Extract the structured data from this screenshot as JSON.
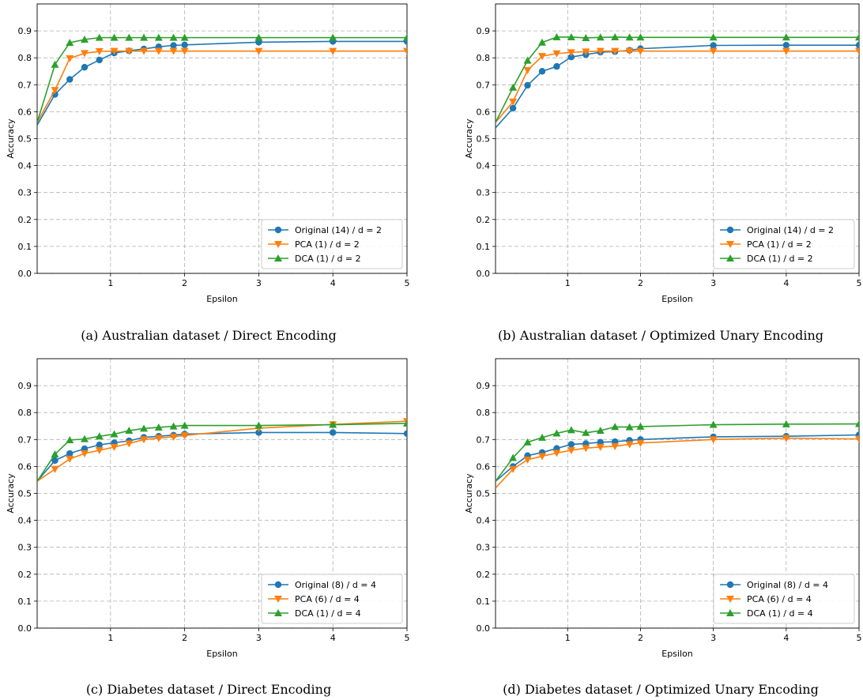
{
  "colors": {
    "original": "#1f77b4",
    "pca": "#ff7f0e",
    "dca": "#2ca02c"
  },
  "chart_data": [
    {
      "type": "line",
      "caption": "(a) Australian dataset / Direct Encoding",
      "xlabel": "Epsilon",
      "ylabel": "Accuracy",
      "xlim": [
        0.01,
        5
      ],
      "ylim": [
        0,
        1
      ],
      "xticks": [
        "1",
        "2",
        "3",
        "4",
        "5"
      ],
      "yticks": [
        "0.0",
        "0.1",
        "0.2",
        "0.3",
        "0.4",
        "0.5",
        "0.6",
        "0.7",
        "0.8",
        "0.9"
      ],
      "grid": true,
      "legend_position": "lower-right",
      "series": [
        {
          "name": "Original (14) / d = 2",
          "marker": "circle",
          "x": [
            0.01,
            0.25,
            0.45,
            0.65,
            0.85,
            1.05,
            1.25,
            1.45,
            1.65,
            1.85,
            2,
            3,
            4,
            5
          ],
          "y": [
            0.55,
            0.664,
            0.72,
            0.765,
            0.792,
            0.818,
            0.826,
            0.833,
            0.841,
            0.846,
            0.848,
            0.858,
            0.861,
            0.861
          ]
        },
        {
          "name": "PCA (1) / d = 2",
          "marker": "triangle-down",
          "x": [
            0.01,
            0.25,
            0.45,
            0.65,
            0.85,
            1.05,
            1.25,
            1.45,
            1.65,
            1.85,
            2,
            3,
            4,
            5
          ],
          "y": [
            0.56,
            0.68,
            0.798,
            0.817,
            0.824,
            0.825,
            0.825,
            0.825,
            0.825,
            0.825,
            0.825,
            0.825,
            0.825,
            0.825
          ]
        },
        {
          "name": "DCA (1) / d = 2",
          "marker": "triangle-up",
          "x": [
            0.01,
            0.25,
            0.45,
            0.65,
            0.85,
            1.05,
            1.25,
            1.45,
            1.65,
            1.85,
            2,
            3,
            4,
            5
          ],
          "y": [
            0.56,
            0.775,
            0.856,
            0.868,
            0.875,
            0.875,
            0.875,
            0.875,
            0.875,
            0.875,
            0.875,
            0.875,
            0.875,
            0.875
          ]
        }
      ]
    },
    {
      "type": "line",
      "caption": "(b) Australian dataset / Optimized Unary Encoding",
      "xlabel": "Epsilon",
      "ylabel": "Accuracy",
      "xlim": [
        0.01,
        5
      ],
      "ylim": [
        0,
        1
      ],
      "xticks": [
        "1",
        "2",
        "3",
        "4",
        "5"
      ],
      "yticks": [
        "0.0",
        "0.1",
        "0.2",
        "0.3",
        "0.4",
        "0.5",
        "0.6",
        "0.7",
        "0.8",
        "0.9"
      ],
      "grid": true,
      "legend_position": "lower-right",
      "series": [
        {
          "name": "Original (14) / d = 2",
          "marker": "circle",
          "x": [
            0.01,
            0.25,
            0.45,
            0.65,
            0.85,
            1.05,
            1.25,
            1.45,
            1.65,
            1.85,
            2,
            3,
            4,
            5
          ],
          "y": [
            0.54,
            0.613,
            0.698,
            0.75,
            0.768,
            0.803,
            0.812,
            0.821,
            0.823,
            0.828,
            0.834,
            0.846,
            0.847,
            0.847
          ]
        },
        {
          "name": "PCA (1) / d = 2",
          "marker": "triangle-down",
          "x": [
            0.01,
            0.25,
            0.45,
            0.65,
            0.85,
            1.05,
            1.25,
            1.45,
            1.65,
            1.85,
            2,
            3,
            4,
            5
          ],
          "y": [
            0.56,
            0.637,
            0.754,
            0.806,
            0.816,
            0.82,
            0.823,
            0.825,
            0.825,
            0.825,
            0.825,
            0.825,
            0.825,
            0.825
          ]
        },
        {
          "name": "DCA (1) / d = 2",
          "marker": "triangle-up",
          "x": [
            0.01,
            0.25,
            0.45,
            0.65,
            0.85,
            1.05,
            1.25,
            1.45,
            1.65,
            1.85,
            2,
            3,
            4,
            5
          ],
          "y": [
            0.56,
            0.69,
            0.79,
            0.857,
            0.877,
            0.877,
            0.874,
            0.876,
            0.877,
            0.876,
            0.876,
            0.876,
            0.876,
            0.876
          ]
        }
      ]
    },
    {
      "type": "line",
      "caption": "(c) Diabetes dataset / Direct Encoding",
      "xlabel": "Epsilon",
      "ylabel": "Accuracy",
      "xlim": [
        0.01,
        5
      ],
      "ylim": [
        0,
        1
      ],
      "xticks": [
        "1",
        "2",
        "3",
        "4",
        "5"
      ],
      "yticks": [
        "0.0",
        "0.1",
        "0.2",
        "0.3",
        "0.4",
        "0.5",
        "0.6",
        "0.7",
        "0.8",
        "0.9"
      ],
      "grid": true,
      "legend_position": "lower-right",
      "series": [
        {
          "name": "Original (8) / d = 4",
          "marker": "circle",
          "x": [
            0.01,
            0.25,
            0.45,
            0.65,
            0.85,
            1.05,
            1.25,
            1.45,
            1.65,
            1.85,
            2,
            3,
            4,
            5
          ],
          "y": [
            0.545,
            0.622,
            0.648,
            0.666,
            0.68,
            0.688,
            0.695,
            0.708,
            0.712,
            0.716,
            0.72,
            0.726,
            0.726,
            0.722
          ]
        },
        {
          "name": "PCA (6) / d = 4",
          "marker": "triangle-down",
          "x": [
            0.01,
            0.25,
            0.45,
            0.65,
            0.85,
            1.05,
            1.25,
            1.45,
            1.65,
            1.85,
            2,
            3,
            4,
            5
          ],
          "y": [
            0.545,
            0.59,
            0.628,
            0.648,
            0.66,
            0.672,
            0.685,
            0.7,
            0.705,
            0.71,
            0.715,
            0.742,
            0.756,
            0.768
          ]
        },
        {
          "name": "DCA (1) / d = 4",
          "marker": "triangle-up",
          "x": [
            0.01,
            0.25,
            0.45,
            0.65,
            0.85,
            1.05,
            1.25,
            1.45,
            1.65,
            1.85,
            2,
            3,
            4,
            5
          ],
          "y": [
            0.545,
            0.645,
            0.698,
            0.702,
            0.712,
            0.72,
            0.733,
            0.741,
            0.745,
            0.749,
            0.752,
            0.752,
            0.755,
            0.76
          ]
        }
      ]
    },
    {
      "type": "line",
      "caption": "(d) Diabetes dataset / Optimized Unary Encoding",
      "xlabel": "Epsilon",
      "ylabel": "Accuracy",
      "xlim": [
        0.01,
        5
      ],
      "ylim": [
        0,
        1
      ],
      "xticks": [
        "1",
        "2",
        "3",
        "4",
        "5"
      ],
      "yticks": [
        "0.0",
        "0.1",
        "0.2",
        "0.3",
        "0.4",
        "0.5",
        "0.6",
        "0.7",
        "0.8",
        "0.9"
      ],
      "grid": true,
      "legend_position": "lower-right",
      "series": [
        {
          "name": "Original (8) / d = 4",
          "marker": "circle",
          "x": [
            0.01,
            0.25,
            0.45,
            0.65,
            0.85,
            1.05,
            1.25,
            1.45,
            1.65,
            1.85,
            2,
            3,
            4,
            5
          ],
          "y": [
            0.545,
            0.6,
            0.64,
            0.652,
            0.667,
            0.682,
            0.685,
            0.69,
            0.692,
            0.697,
            0.7,
            0.71,
            0.712,
            0.717
          ]
        },
        {
          "name": "PCA (6) / d = 4",
          "marker": "triangle-down",
          "x": [
            0.01,
            0.25,
            0.45,
            0.65,
            0.85,
            1.05,
            1.25,
            1.45,
            1.65,
            1.85,
            2,
            3,
            4,
            5
          ],
          "y": [
            0.52,
            0.59,
            0.625,
            0.638,
            0.65,
            0.66,
            0.668,
            0.672,
            0.675,
            0.682,
            0.687,
            0.7,
            0.705,
            0.702
          ]
        },
        {
          "name": "DCA (1) / d = 4",
          "marker": "triangle-up",
          "x": [
            0.01,
            0.25,
            0.45,
            0.65,
            0.85,
            1.05,
            1.25,
            1.45,
            1.65,
            1.85,
            2,
            3,
            4,
            5
          ],
          "y": [
            0.545,
            0.632,
            0.69,
            0.707,
            0.723,
            0.735,
            0.725,
            0.733,
            0.747,
            0.746,
            0.748,
            0.755,
            0.757,
            0.758
          ]
        }
      ]
    }
  ]
}
